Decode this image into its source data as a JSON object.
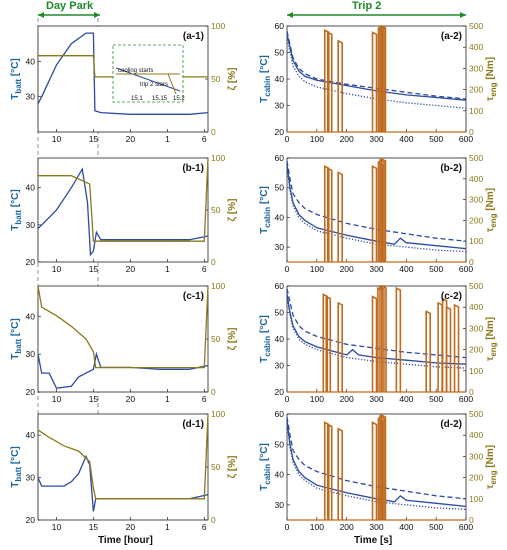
{
  "headers": {
    "left": "Day Park",
    "right": "Trip 2"
  },
  "xlabels": {
    "left": "Time [hour]",
    "right": "Time [s]"
  },
  "ylabels": {
    "left_main": "T",
    "left_sub": "batt",
    "left_unit": "[°C]",
    "left_right": "ζ [%]",
    "right_main": "T",
    "right_sub": "cabin",
    "right_unit": "[°C]",
    "right_right_main": "τ",
    "right_right_sub": "eng",
    "right_right_unit": "[Nm]"
  },
  "panel_labels": {
    "a1": "(a-1)",
    "b1": "(b-1)",
    "c1": "(c-1)",
    "d1": "(d-1)",
    "a2": "(a-2)",
    "b2": "(b-2)",
    "c2": "(c-2)",
    "d2": "(d-2)"
  },
  "inset": {
    "note1": "cooling starts",
    "note2": "trip 2 stars",
    "xticks": [
      "15.1",
      "15.15",
      "15.2"
    ]
  },
  "colors": {
    "temperature": "#2b4aa0",
    "soc": "#8a7a1a",
    "torque": "#c06a1e",
    "header": "#1f8a2a"
  },
  "chart_data": [
    {
      "id": "a1",
      "type": "line",
      "x_ticks": [
        "10",
        "15",
        "20",
        "1",
        "6"
      ],
      "y_left": {
        "label": "T batt [°C]",
        "range": [
          20,
          50
        ],
        "ticks": [
          30,
          40
        ]
      },
      "y_right": {
        "label": "ζ [%]",
        "range": [
          0,
          100
        ],
        "ticks": [
          0,
          50,
          100
        ]
      },
      "series": [
        {
          "axis": "left",
          "x": [
            7.5,
            8,
            10,
            12,
            14,
            15,
            15.2,
            16,
            20,
            24,
            28,
            30.5
          ],
          "y": [
            28,
            30,
            39,
            45,
            48,
            48,
            26,
            25.5,
            25,
            25,
            25,
            25.5
          ]
        },
        {
          "axis": "right",
          "x": [
            7.5,
            15,
            15.2,
            30.5
          ],
          "y": [
            72,
            72,
            52,
            52
          ]
        }
      ]
    },
    {
      "id": "b1",
      "type": "line",
      "x_ticks": [
        "10",
        "15",
        "20",
        "1",
        "6"
      ],
      "y_left": {
        "label": "T batt [°C]",
        "range": [
          20,
          48
        ],
        "ticks": [
          20,
          30,
          40
        ]
      },
      "y_right": {
        "label": "ζ [%]",
        "range": [
          0,
          100
        ],
        "ticks": [
          0,
          50,
          100
        ]
      },
      "series": [
        {
          "axis": "left",
          "x": [
            7.5,
            8,
            10,
            12,
            13.5,
            14.2,
            14.6,
            15,
            15.4,
            16,
            20,
            24,
            28,
            30.5
          ],
          "y": [
            29,
            30,
            34,
            40,
            45,
            36,
            22,
            23,
            28,
            26,
            26,
            26,
            26,
            27
          ]
        },
        {
          "axis": "right",
          "x": [
            7.5,
            12,
            14.5,
            15,
            30,
            30.5
          ],
          "y": [
            83,
            83,
            75,
            20,
            20,
            100
          ]
        }
      ]
    },
    {
      "id": "c1",
      "type": "line",
      "x_ticks": [
        "10",
        "15",
        "20",
        "1",
        "6"
      ],
      "y_left": {
        "label": "T batt [°C]",
        "range": [
          20,
          48
        ],
        "ticks": [
          20,
          30,
          40
        ]
      },
      "y_right": {
        "label": "ζ [%]",
        "range": [
          0,
          100
        ],
        "ticks": [
          0,
          50,
          100
        ]
      },
      "series": [
        {
          "axis": "left",
          "x": [
            7.5,
            8,
            9,
            10,
            12,
            13,
            14,
            15,
            15.4,
            16,
            20,
            24,
            28,
            30.5
          ],
          "y": [
            30,
            25,
            25,
            21,
            21.5,
            24,
            25,
            26,
            30,
            26.5,
            26.5,
            26,
            26,
            27
          ]
        },
        {
          "axis": "right",
          "x": [
            7.5,
            8,
            10,
            12,
            14,
            15,
            15.3,
            30,
            30.5
          ],
          "y": [
            100,
            80,
            72,
            62,
            50,
            38,
            23,
            23,
            100
          ]
        }
      ]
    },
    {
      "id": "d1",
      "type": "line",
      "x_ticks": [
        "10",
        "15",
        "20",
        "1",
        "6"
      ],
      "y_left": {
        "label": "T batt [°C]",
        "range": [
          20,
          45
        ],
        "ticks": [
          20,
          30,
          40
        ]
      },
      "y_right": {
        "label": "ζ [%]",
        "range": [
          0,
          100
        ],
        "ticks": [
          0,
          50,
          100
        ]
      },
      "series": [
        {
          "axis": "left",
          "x": [
            7.5,
            8,
            9,
            10,
            11,
            12,
            13,
            14,
            14.5,
            15,
            15.3,
            16,
            20,
            24,
            28,
            30.5
          ],
          "y": [
            30,
            28,
            28,
            28,
            28,
            29,
            31,
            35,
            33,
            22,
            25,
            25,
            25,
            25,
            25,
            26
          ]
        },
        {
          "axis": "right",
          "x": [
            7.5,
            9,
            11,
            13,
            14.5,
            15,
            15.3,
            30,
            30.5
          ],
          "y": [
            85,
            78,
            70,
            65,
            55,
            30,
            20,
            20,
            100
          ]
        }
      ]
    },
    {
      "id": "a2",
      "type": "line",
      "x_ticks": [
        "0",
        "100",
        "200",
        "300",
        "400",
        "500",
        "600"
      ],
      "y_left": {
        "label": "T cabin [°C]",
        "range": [
          20,
          60
        ],
        "ticks": [
          20,
          30,
          40,
          50,
          60
        ]
      },
      "y_right": {
        "label": "τ eng [Nm]",
        "range": [
          0,
          500
        ],
        "ticks": [
          0,
          100,
          200,
          300,
          400,
          500
        ]
      },
      "series": [
        {
          "axis": "left",
          "style": "solid",
          "x": [
            0,
            10,
            20,
            40,
            60,
            100,
            200,
            300,
            400,
            500,
            600
          ],
          "y": [
            57,
            52,
            47,
            43,
            41,
            39.5,
            37.5,
            35.5,
            34,
            33,
            32
          ]
        },
        {
          "axis": "left",
          "style": "dashed",
          "x": [
            0,
            10,
            20,
            40,
            60,
            100,
            200,
            300,
            400,
            500,
            600
          ],
          "y": [
            58,
            53,
            48,
            44,
            42,
            40,
            38,
            36.5,
            35,
            33.5,
            32.5
          ]
        },
        {
          "axis": "left",
          "style": "dotted",
          "x": [
            0,
            10,
            20,
            40,
            60,
            100,
            200,
            300,
            400,
            500,
            600
          ],
          "y": [
            56,
            50,
            45,
            41,
            39,
            37,
            34.5,
            32.5,
            31,
            30,
            29
          ]
        },
        {
          "axis": "right",
          "style": "bars",
          "bursts": [
            [
              140,
              480
            ],
            [
              150,
              470
            ],
            [
              185,
              430
            ],
            [
              300,
              470
            ],
            [
              320,
              490
            ],
            [
              325,
              495
            ],
            [
              330,
              500
            ]
          ]
        }
      ]
    },
    {
      "id": "b2",
      "type": "line",
      "x_ticks": [
        "0",
        "100",
        "200",
        "300",
        "400",
        "500",
        "600"
      ],
      "y_left": {
        "label": "T cabin [°C]",
        "range": [
          25,
          60
        ],
        "ticks": [
          30,
          40,
          50,
          60
        ]
      },
      "y_right": {
        "label": "τ eng [Nm]",
        "range": [
          0,
          500
        ],
        "ticks": [
          0,
          100,
          200,
          300,
          400,
          500
        ]
      },
      "series": [
        {
          "axis": "left",
          "style": "solid",
          "x": [
            0,
            10,
            20,
            40,
            60,
            100,
            200,
            300,
            360,
            380,
            400,
            500,
            600
          ],
          "y": [
            58,
            50,
            45,
            41,
            39,
            36.5,
            34,
            32,
            31,
            33,
            31.5,
            30.5,
            29.5
          ]
        },
        {
          "axis": "left",
          "style": "dashed",
          "x": [
            0,
            10,
            20,
            40,
            60,
            100,
            200,
            300,
            400,
            500,
            600
          ],
          "y": [
            59,
            53,
            48,
            45,
            43,
            41,
            38,
            36,
            34.5,
            33,
            32
          ]
        },
        {
          "axis": "left",
          "style": "dotted",
          "x": [
            0,
            10,
            20,
            40,
            60,
            100,
            200,
            300,
            400,
            500,
            600
          ],
          "y": [
            57,
            49,
            44,
            40,
            38,
            35.5,
            33,
            31,
            30,
            29,
            28.5
          ]
        },
        {
          "axis": "right",
          "style": "bars",
          "bursts": [
            [
              140,
              460
            ],
            [
              150,
              450
            ],
            [
              185,
              430
            ],
            [
              300,
              460
            ],
            [
              320,
              480
            ],
            [
              325,
              490
            ],
            [
              330,
              495
            ]
          ]
        }
      ]
    },
    {
      "id": "c2",
      "type": "line",
      "x_ticks": [
        "0",
        "100",
        "200",
        "300",
        "400",
        "500",
        "600"
      ],
      "y_left": {
        "label": "T cabin [°C]",
        "range": [
          20,
          60
        ],
        "ticks": [
          20,
          30,
          40,
          50,
          60
        ]
      },
      "y_right": {
        "label": "τ eng [Nm]",
        "range": [
          0,
          500
        ],
        "ticks": [
          0,
          100,
          200,
          300,
          400,
          500
        ]
      },
      "series": [
        {
          "axis": "left",
          "style": "solid",
          "x": [
            0,
            10,
            20,
            40,
            60,
            100,
            200,
            220,
            240,
            300,
            400,
            500,
            600
          ],
          "y": [
            57,
            50,
            45,
            41,
            39,
            37,
            34,
            36,
            34,
            33,
            32,
            31,
            30.5
          ]
        },
        {
          "axis": "left",
          "style": "dashed",
          "x": [
            0,
            10,
            20,
            40,
            60,
            100,
            200,
            300,
            400,
            500,
            600
          ],
          "y": [
            59,
            54,
            49,
            45,
            43,
            41,
            38,
            36.5,
            35,
            34,
            33
          ]
        },
        {
          "axis": "left",
          "style": "dotted",
          "x": [
            0,
            10,
            20,
            40,
            60,
            100,
            200,
            300,
            400,
            500,
            600
          ],
          "y": [
            56,
            49,
            44,
            40,
            38,
            36,
            33,
            31.5,
            30.5,
            29.5,
            29
          ]
        },
        {
          "axis": "right",
          "style": "bars",
          "bursts": [
            [
              135,
              460
            ],
            [
              145,
              450
            ],
            [
              185,
              420
            ],
            [
              300,
              450
            ],
            [
              318,
              490
            ],
            [
              325,
              495
            ],
            [
              332,
              500
            ],
            [
              380,
              490
            ],
            [
              480,
              380
            ],
            [
              520,
              420
            ],
            [
              535,
              440
            ],
            [
              548,
              400
            ],
            [
              575,
              410
            ]
          ]
        }
      ]
    },
    {
      "id": "d2",
      "type": "line",
      "x_ticks": [
        "0",
        "100",
        "200",
        "300",
        "400",
        "500",
        "600"
      ],
      "y_left": {
        "label": "T cabin [°C]",
        "range": [
          25,
          60
        ],
        "ticks": [
          30,
          40,
          50,
          60
        ]
      },
      "y_right": {
        "label": "τ eng [Nm]",
        "range": [
          0,
          500
        ],
        "ticks": [
          0,
          100,
          200,
          300,
          400,
          500
        ]
      },
      "series": [
        {
          "axis": "left",
          "style": "solid",
          "x": [
            0,
            10,
            20,
            40,
            60,
            100,
            200,
            300,
            360,
            380,
            400,
            500,
            600
          ],
          "y": [
            58,
            50,
            45,
            41,
            39,
            36.5,
            34,
            32,
            31,
            33,
            31.5,
            30.5,
            29.5
          ]
        },
        {
          "axis": "left",
          "style": "dashed",
          "x": [
            0,
            10,
            20,
            40,
            60,
            100,
            200,
            300,
            400,
            500,
            600
          ],
          "y": [
            59,
            53,
            48,
            45,
            43,
            41,
            38,
            36,
            34.5,
            33,
            32
          ]
        },
        {
          "axis": "left",
          "style": "dotted",
          "x": [
            0,
            10,
            20,
            40,
            60,
            100,
            200,
            300,
            400,
            500,
            600
          ],
          "y": [
            57,
            49,
            44,
            40,
            38,
            35.5,
            33,
            31,
            30,
            29,
            28.5
          ]
        },
        {
          "axis": "right",
          "style": "bars",
          "bursts": [
            [
              140,
              460
            ],
            [
              150,
              450
            ],
            [
              185,
              430
            ],
            [
              300,
              460
            ],
            [
              320,
              480
            ],
            [
              325,
              490
            ],
            [
              330,
              495
            ]
          ]
        }
      ]
    }
  ]
}
